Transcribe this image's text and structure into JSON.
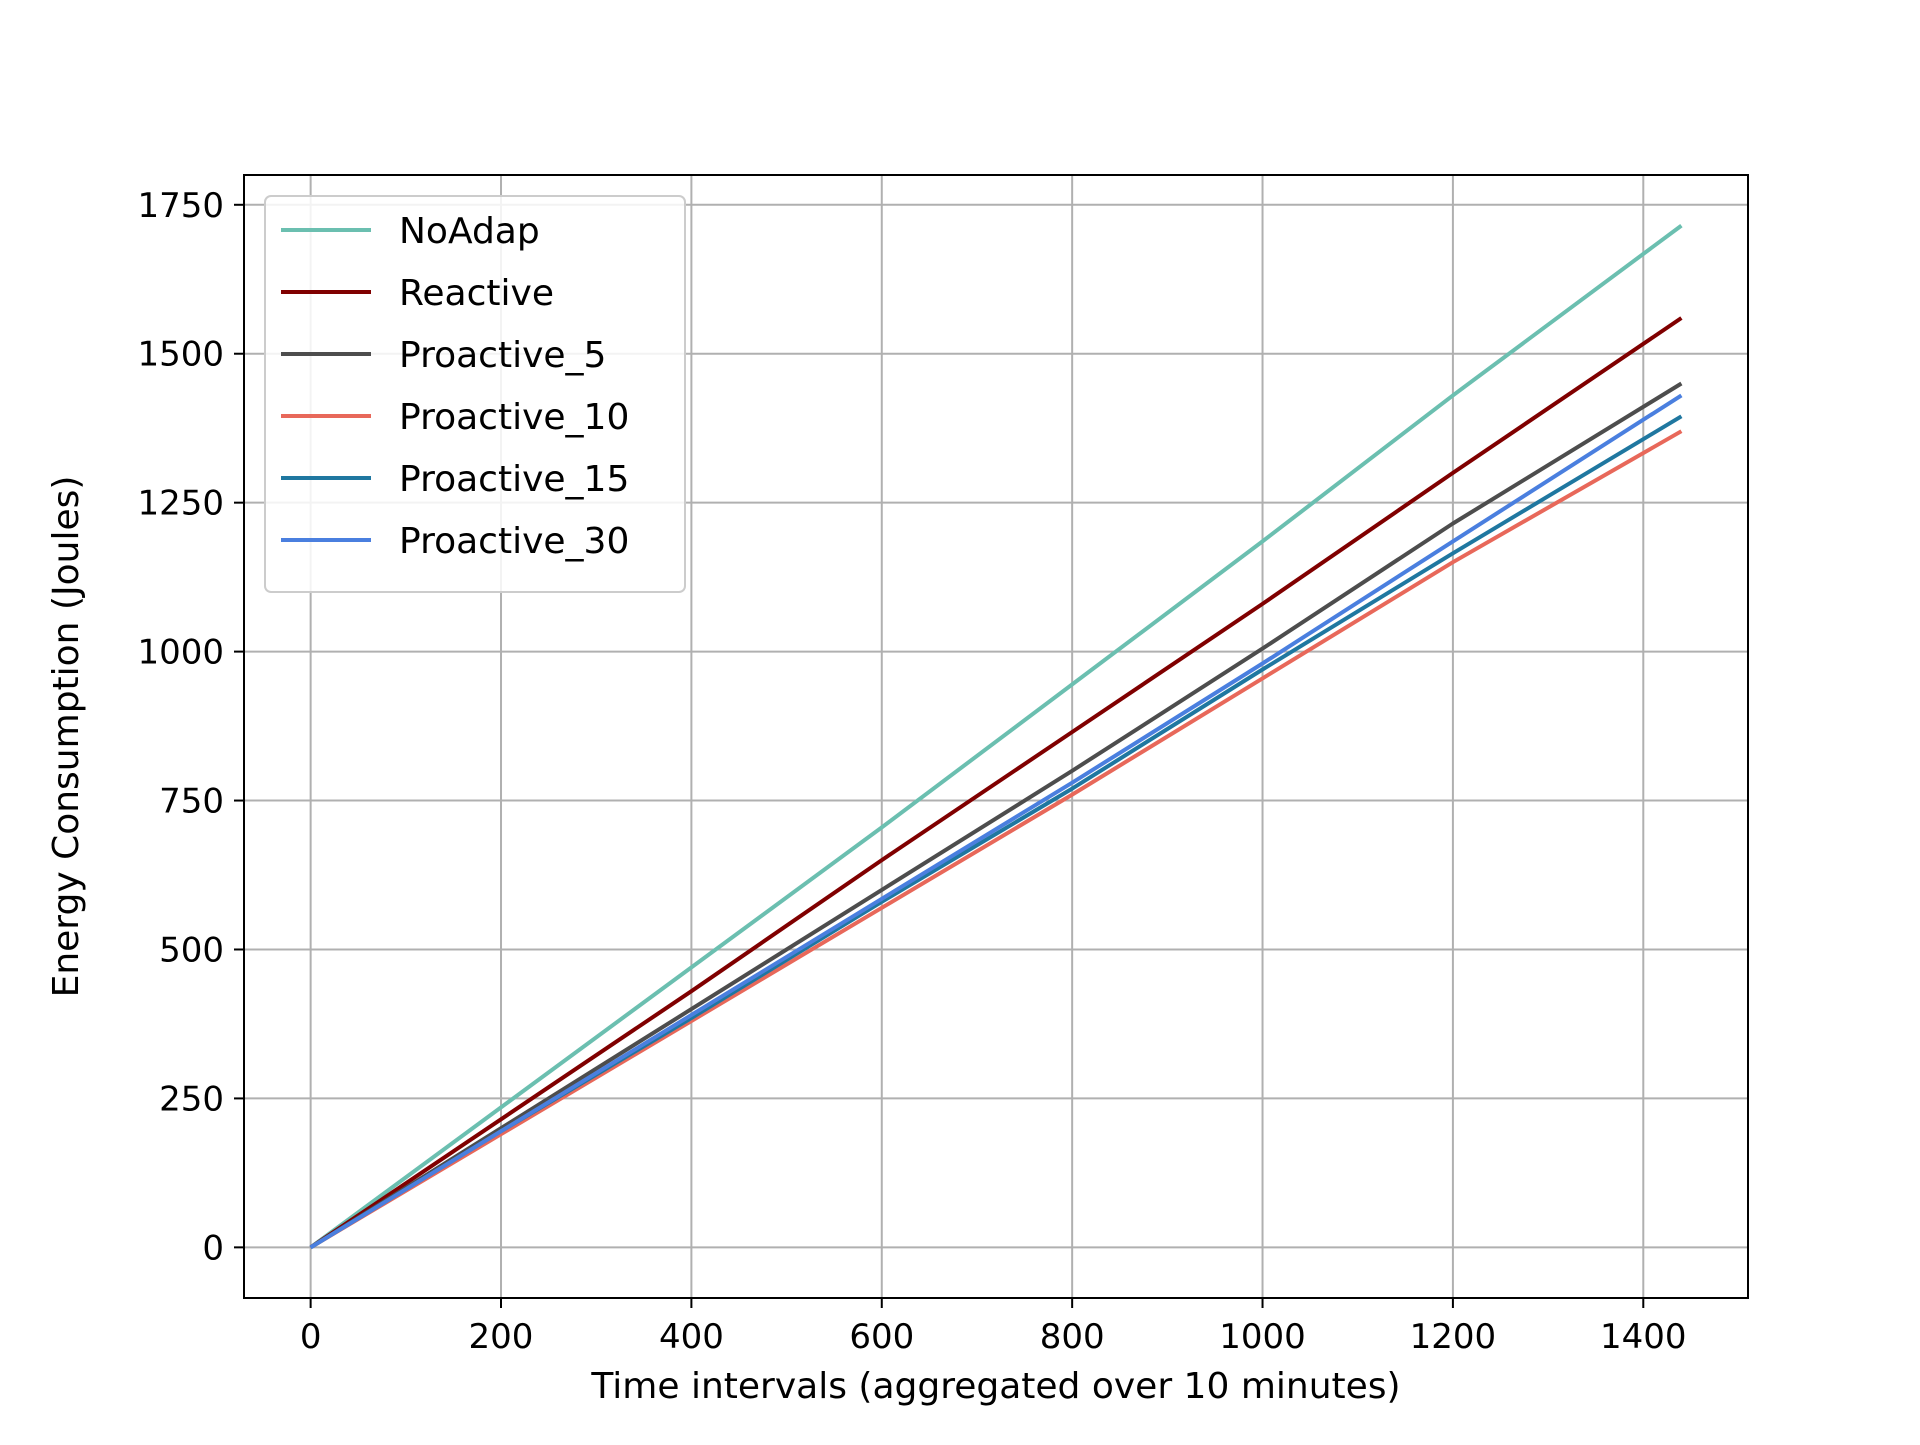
{
  "chart_data": {
    "type": "line",
    "title": "",
    "xlabel": "Time intervals (aggregated over 10 minutes)",
    "ylabel": "Energy Consumption (Joules)",
    "xlim": [
      -70,
      1510
    ],
    "ylim": [
      -85,
      1800
    ],
    "xticks": [
      0,
      200,
      400,
      600,
      800,
      1000,
      1200,
      1400
    ],
    "yticks": [
      0,
      250,
      500,
      750,
      1000,
      1250,
      1500,
      1750
    ],
    "grid": true,
    "legend_position": "top-left",
    "series": [
      {
        "name": "NoAdap",
        "color": "#6bbfb0",
        "x": [
          0,
          200,
          400,
          600,
          800,
          1000,
          1200,
          1440
        ],
        "y": [
          0,
          235,
          470,
          705,
          945,
          1185,
          1430,
          1715
        ]
      },
      {
        "name": "Reactive",
        "color": "#800000",
        "x": [
          0,
          200,
          400,
          600,
          800,
          1000,
          1200,
          1440
        ],
        "y": [
          0,
          215,
          430,
          650,
          865,
          1080,
          1300,
          1560
        ]
      },
      {
        "name": "Proactive_5",
        "color": "#4d4d4d",
        "x": [
          0,
          200,
          400,
          600,
          800,
          1000,
          1200,
          1440
        ],
        "y": [
          0,
          200,
          400,
          600,
          800,
          1005,
          1215,
          1450
        ]
      },
      {
        "name": "Proactive_10",
        "color": "#e8685a",
        "x": [
          0,
          200,
          400,
          600,
          800,
          1000,
          1200,
          1440
        ],
        "y": [
          0,
          190,
          380,
          570,
          760,
          955,
          1150,
          1370
        ]
      },
      {
        "name": "Proactive_15",
        "color": "#1f77a0",
        "x": [
          0,
          200,
          400,
          600,
          800,
          1000,
          1200,
          1440
        ],
        "y": [
          0,
          195,
          385,
          580,
          770,
          970,
          1165,
          1395
        ]
      },
      {
        "name": "Proactive_30",
        "color": "#4a7fdf",
        "x": [
          0,
          200,
          400,
          600,
          800,
          1000,
          1200,
          1440
        ],
        "y": [
          0,
          195,
          390,
          585,
          780,
          980,
          1185,
          1430
        ]
      }
    ]
  }
}
